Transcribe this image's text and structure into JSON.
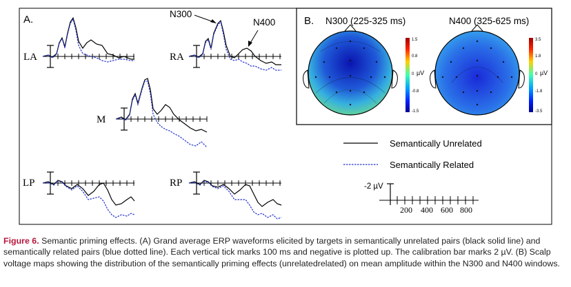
{
  "panel_a": {
    "label": "A.",
    "channels": [
      "LA",
      "RA",
      "M",
      "LP",
      "RP"
    ],
    "annotations": [
      "N300",
      "N400"
    ]
  },
  "panel_b": {
    "label": "B.",
    "n300_title": "N300 (225-325 ms)",
    "n400_title": "N400 (325-625 ms)",
    "n300_scale": [
      "1.5",
      "0.8",
      "0",
      "-0.8",
      "-1.5"
    ],
    "n400_scale": [
      "3.5",
      "1.8",
      "0",
      "-1.8",
      "-3.5"
    ],
    "unit": "µV"
  },
  "legend": {
    "unrelated": "Semantically Unrelated",
    "related": "Semantically Related"
  },
  "calibration": {
    "amplitude": "-2 µV",
    "ticks": [
      "200",
      "400",
      "600",
      "800"
    ]
  },
  "colors": {
    "unrelated": "#000000",
    "related": "#2233cc",
    "caption_label": "#b8163c"
  },
  "caption": {
    "label": "Figure 6.",
    "text": "Semantic priming effects. (A) Grand average ERP waveforms elicited by targets in semantically unrelated pairs (black solid line) and semantically related pairs (blue dotted line). Each vertical tick marks 100 ms and negative is plotted up. The calibration bar marks 2 µV. (B) Scalp voltage maps showing the distribution of the semantically priming effects (unrelatedrelated) on mean amplitude within the N300 and N400 windows."
  }
}
